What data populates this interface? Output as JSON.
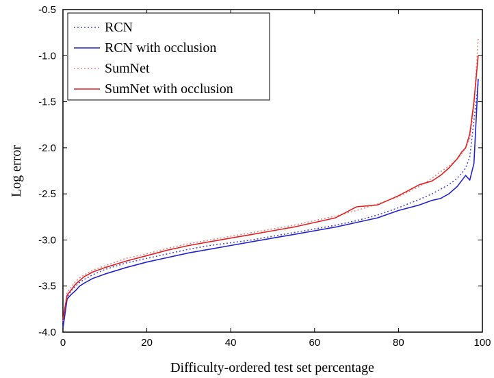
{
  "chart_data": {
    "type": "line",
    "xlabel": "Difficulty-ordered test set percentage",
    "ylabel": "Log  error",
    "xlim": [
      0,
      100
    ],
    "ylim": [
      -4.0,
      -0.5
    ],
    "xticks": [
      0,
      20,
      40,
      60,
      80,
      100
    ],
    "xtick_labels": [
      "0",
      "20",
      "40",
      "60",
      "80",
      "100"
    ],
    "yticks": [
      -4.0,
      -3.5,
      -3.0,
      -2.5,
      -2.0,
      -1.5,
      -1.0,
      -0.5
    ],
    "ytick_labels": [
      "-4.0",
      "-3.5",
      "-3.0",
      "-2.5",
      "-2.0",
      "-1.5",
      "-1.0",
      "-0.5"
    ],
    "grid": false,
    "legend_position": "top-left",
    "x": [
      0,
      1,
      2,
      3,
      4,
      5,
      7,
      10,
      15,
      20,
      25,
      30,
      35,
      40,
      45,
      50,
      55,
      60,
      65,
      70,
      75,
      80,
      85,
      88,
      90,
      92,
      94,
      95,
      96,
      97,
      98,
      99
    ],
    "series": [
      {
        "name": "RCN",
        "color": "#4a4ad6",
        "dash": "dotted",
        "values": [
          -3.9,
          -3.62,
          -3.55,
          -3.5,
          -3.46,
          -3.43,
          -3.38,
          -3.32,
          -3.25,
          -3.2,
          -3.15,
          -3.1,
          -3.06,
          -3.03,
          -3.0,
          -2.96,
          -2.92,
          -2.88,
          -2.84,
          -2.79,
          -2.73,
          -2.65,
          -2.56,
          -2.5,
          -2.45,
          -2.4,
          -2.33,
          -2.28,
          -2.22,
          -2.1,
          -1.7,
          -1.3
        ]
      },
      {
        "name": "RCN with occlusion",
        "color": "#2222cc",
        "dash": "solid",
        "values": [
          -3.96,
          -3.64,
          -3.59,
          -3.55,
          -3.5,
          -3.47,
          -3.42,
          -3.37,
          -3.3,
          -3.24,
          -3.19,
          -3.14,
          -3.1,
          -3.06,
          -3.02,
          -2.98,
          -2.94,
          -2.9,
          -2.86,
          -2.81,
          -2.76,
          -2.68,
          -2.62,
          -2.57,
          -2.55,
          -2.5,
          -2.42,
          -2.36,
          -2.3,
          -2.35,
          -2.17,
          -1.25
        ]
      },
      {
        "name": "SumNet",
        "color": "#f08080",
        "dash": "dotted",
        "values": [
          -3.88,
          -3.57,
          -3.51,
          -3.45,
          -3.41,
          -3.38,
          -3.33,
          -3.28,
          -3.2,
          -3.15,
          -3.09,
          -3.04,
          -3.0,
          -2.96,
          -2.92,
          -2.88,
          -2.84,
          -2.79,
          -2.74,
          -2.68,
          -2.61,
          -2.53,
          -2.42,
          -2.33,
          -2.26,
          -2.2,
          -2.12,
          -2.07,
          -2.0,
          -1.9,
          -1.55,
          -0.82
        ]
      },
      {
        "name": "SumNet with occlusion",
        "color": "#e02020",
        "dash": "solid",
        "values": [
          -3.86,
          -3.6,
          -3.54,
          -3.48,
          -3.44,
          -3.4,
          -3.35,
          -3.3,
          -3.23,
          -3.17,
          -3.11,
          -3.06,
          -3.02,
          -2.98,
          -2.94,
          -2.9,
          -2.86,
          -2.81,
          -2.76,
          -2.64,
          -2.62,
          -2.52,
          -2.4,
          -2.36,
          -2.3,
          -2.22,
          -2.12,
          -2.05,
          -2.0,
          -1.85,
          -1.5,
          -1.0
        ]
      }
    ]
  }
}
